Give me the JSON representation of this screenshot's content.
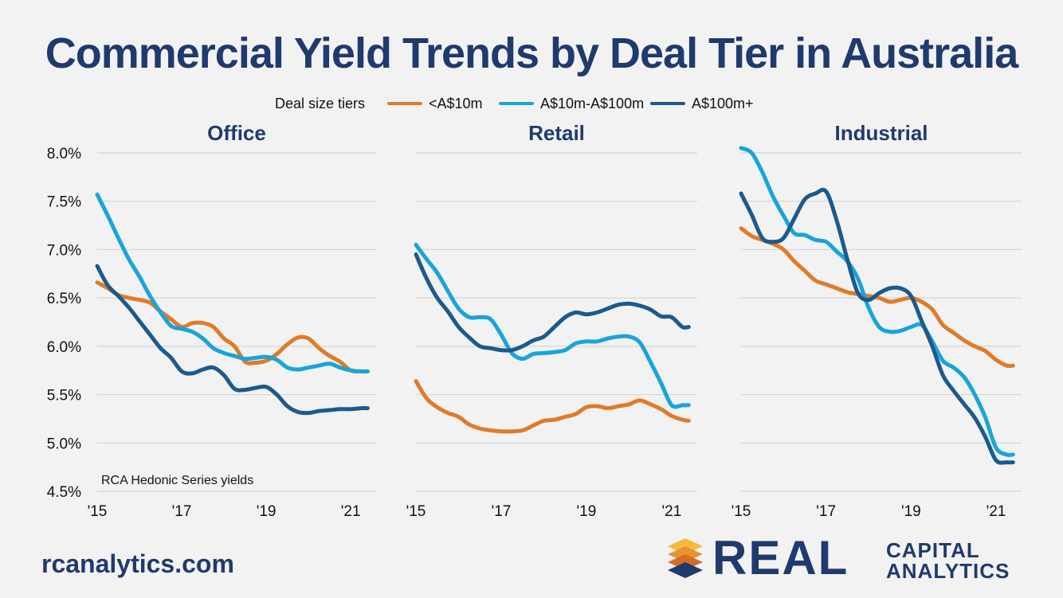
{
  "title": "Commercial Yield Trends by Deal Tier in Australia",
  "footer": {
    "site": "rcanalytics.com"
  },
  "logo": {
    "word": "REAL",
    "line1": "CAPITAL",
    "line2": "ANALYTICS"
  },
  "colors": {
    "background": "#f2f2f2",
    "title": "#1f3a6e",
    "grid": "#cfcfcf",
    "tier_small": "#e07b28",
    "tier_mid": "#18a4dc",
    "tier_large": "#1b5a8e"
  },
  "chart_data": {
    "type": "line",
    "legend_title": "Deal size tiers",
    "legend_position": "top-center",
    "note": "RCA Hedonic Series yields",
    "y_ticks": [
      "8.0%",
      "7.5%",
      "7.0%",
      "6.5%",
      "6.0%",
      "5.5%",
      "5.0%",
      "4.5%"
    ],
    "ylim": [
      4.5,
      8.0
    ],
    "x_ticks": [
      "'15",
      "'17",
      "'19",
      "'21"
    ],
    "x_tick_values": [
      2015,
      2017,
      2019,
      2021
    ],
    "xlim": [
      2015,
      2021.6
    ],
    "grid": "horizontal",
    "series_names": [
      "<A$10m",
      "A$10m-A$100m",
      "A$100m+"
    ],
    "panels": [
      {
        "title": "Office",
        "series": [
          {
            "name": "<A$10m",
            "x": [
              2015.0,
              2015.25,
              2015.5,
              2015.75,
              2016.0,
              2016.25,
              2016.5,
              2016.75,
              2017.0,
              2017.25,
              2017.5,
              2017.75,
              2018.0,
              2018.25,
              2018.5,
              2018.75,
              2019.0,
              2019.25,
              2019.5,
              2019.75,
              2020.0,
              2020.25,
              2020.5,
              2020.75,
              2021.0,
              2021.25,
              2021.4
            ],
            "y": [
              6.66,
              6.6,
              6.53,
              6.5,
              6.48,
              6.45,
              6.36,
              6.28,
              6.2,
              6.24,
              6.24,
              6.2,
              6.08,
              6.0,
              5.84,
              5.83,
              5.85,
              5.92,
              6.02,
              6.09,
              6.08,
              5.98,
              5.9,
              5.84,
              5.75,
              5.74,
              5.74
            ]
          },
          {
            "name": "A$10m-A$100m",
            "x": [
              2015.0,
              2015.25,
              2015.5,
              2015.75,
              2016.0,
              2016.25,
              2016.5,
              2016.75,
              2017.0,
              2017.25,
              2017.5,
              2017.75,
              2018.0,
              2018.25,
              2018.5,
              2018.75,
              2019.0,
              2019.25,
              2019.5,
              2019.75,
              2020.0,
              2020.25,
              2020.5,
              2020.75,
              2021.0,
              2021.25,
              2021.4
            ],
            "y": [
              7.57,
              7.35,
              7.12,
              6.9,
              6.72,
              6.52,
              6.35,
              6.21,
              6.18,
              6.15,
              6.08,
              5.98,
              5.93,
              5.9,
              5.87,
              5.88,
              5.89,
              5.86,
              5.78,
              5.76,
              5.78,
              5.8,
              5.82,
              5.78,
              5.75,
              5.74,
              5.74
            ]
          },
          {
            "name": "A$100m+",
            "x": [
              2015.0,
              2015.25,
              2015.5,
              2015.75,
              2016.0,
              2016.25,
              2016.5,
              2016.75,
              2017.0,
              2017.25,
              2017.5,
              2017.75,
              2018.0,
              2018.25,
              2018.5,
              2018.75,
              2019.0,
              2019.25,
              2019.5,
              2019.75,
              2020.0,
              2020.25,
              2020.5,
              2020.75,
              2021.0,
              2021.25,
              2021.4
            ],
            "y": [
              6.83,
              6.63,
              6.52,
              6.4,
              6.26,
              6.12,
              5.98,
              5.88,
              5.74,
              5.72,
              5.76,
              5.78,
              5.7,
              5.56,
              5.55,
              5.57,
              5.58,
              5.5,
              5.38,
              5.32,
              5.31,
              5.33,
              5.34,
              5.35,
              5.35,
              5.36,
              5.36
            ]
          }
        ]
      },
      {
        "title": "Retail",
        "series": [
          {
            "name": "<A$10m",
            "x": [
              2015.0,
              2015.25,
              2015.5,
              2015.75,
              2016.0,
              2016.25,
              2016.5,
              2016.75,
              2017.0,
              2017.25,
              2017.5,
              2017.75,
              2018.0,
              2018.25,
              2018.5,
              2018.75,
              2019.0,
              2019.25,
              2019.5,
              2019.75,
              2020.0,
              2020.25,
              2020.5,
              2020.75,
              2021.0,
              2021.25,
              2021.4
            ],
            "y": [
              5.64,
              5.46,
              5.37,
              5.31,
              5.27,
              5.19,
              5.15,
              5.13,
              5.12,
              5.12,
              5.13,
              5.18,
              5.23,
              5.24,
              5.27,
              5.3,
              5.37,
              5.38,
              5.36,
              5.38,
              5.4,
              5.44,
              5.4,
              5.35,
              5.28,
              5.24,
              5.23
            ]
          },
          {
            "name": "A$10m-A$100m",
            "x": [
              2015.0,
              2015.25,
              2015.5,
              2015.75,
              2016.0,
              2016.25,
              2016.5,
              2016.75,
              2017.0,
              2017.25,
              2017.5,
              2017.75,
              2018.0,
              2018.25,
              2018.5,
              2018.75,
              2019.0,
              2019.25,
              2019.5,
              2019.75,
              2020.0,
              2020.25,
              2020.5,
              2020.75,
              2021.0,
              2021.25,
              2021.4
            ],
            "y": [
              7.05,
              6.9,
              6.76,
              6.57,
              6.39,
              6.3,
              6.3,
              6.28,
              6.12,
              5.93,
              5.87,
              5.92,
              5.93,
              5.94,
              5.96,
              6.03,
              6.05,
              6.05,
              6.08,
              6.1,
              6.1,
              6.04,
              5.84,
              5.62,
              5.39,
              5.39,
              5.39
            ]
          },
          {
            "name": "A$100m+",
            "x": [
              2015.0,
              2015.25,
              2015.5,
              2015.75,
              2016.0,
              2016.25,
              2016.5,
              2016.75,
              2017.0,
              2017.25,
              2017.5,
              2017.75,
              2018.0,
              2018.25,
              2018.5,
              2018.75,
              2019.0,
              2019.25,
              2019.5,
              2019.75,
              2020.0,
              2020.25,
              2020.5,
              2020.75,
              2021.0,
              2021.25,
              2021.4
            ],
            "y": [
              6.95,
              6.7,
              6.5,
              6.36,
              6.2,
              6.09,
              6.0,
              5.98,
              5.96,
              5.96,
              6.0,
              6.06,
              6.1,
              6.2,
              6.3,
              6.35,
              6.33,
              6.35,
              6.39,
              6.43,
              6.44,
              6.42,
              6.38,
              6.31,
              6.3,
              6.2,
              6.2
            ]
          }
        ]
      },
      {
        "title": "Industrial",
        "series": [
          {
            "name": "<A$10m",
            "x": [
              2015.0,
              2015.25,
              2015.5,
              2015.75,
              2016.0,
              2016.25,
              2016.5,
              2016.75,
              2017.0,
              2017.25,
              2017.5,
              2017.75,
              2018.0,
              2018.25,
              2018.5,
              2018.75,
              2019.0,
              2019.25,
              2019.5,
              2019.75,
              2020.0,
              2020.25,
              2020.5,
              2020.75,
              2021.0,
              2021.25,
              2021.4
            ],
            "y": [
              7.22,
              7.14,
              7.1,
              7.06,
              7.0,
              6.88,
              6.78,
              6.68,
              6.64,
              6.6,
              6.56,
              6.54,
              6.52,
              6.5,
              6.46,
              6.48,
              6.5,
              6.46,
              6.38,
              6.22,
              6.14,
              6.06,
              6.0,
              5.95,
              5.86,
              5.8,
              5.8
            ]
          },
          {
            "name": "A$10m-A$100m",
            "x": [
              2015.0,
              2015.25,
              2015.5,
              2015.75,
              2016.0,
              2016.25,
              2016.5,
              2016.75,
              2017.0,
              2017.25,
              2017.5,
              2017.75,
              2018.0,
              2018.25,
              2018.5,
              2018.75,
              2019.0,
              2019.25,
              2019.5,
              2019.75,
              2020.0,
              2020.25,
              2020.5,
              2020.75,
              2021.0,
              2021.25,
              2021.4
            ],
            "y": [
              8.05,
              8.0,
              7.8,
              7.55,
              7.35,
              7.17,
              7.15,
              7.1,
              7.08,
              6.98,
              6.88,
              6.7,
              6.4,
              6.2,
              6.15,
              6.16,
              6.2,
              6.22,
              6.05,
              5.85,
              5.78,
              5.68,
              5.5,
              5.26,
              4.95,
              4.88,
              4.88
            ]
          },
          {
            "name": "A$100m+",
            "x": [
              2015.0,
              2015.25,
              2015.5,
              2015.75,
              2016.0,
              2016.25,
              2016.5,
              2016.75,
              2017.0,
              2017.25,
              2017.5,
              2017.75,
              2018.0,
              2018.25,
              2018.5,
              2018.75,
              2019.0,
              2019.25,
              2019.5,
              2019.75,
              2020.0,
              2020.25,
              2020.5,
              2020.75,
              2021.0,
              2021.25,
              2021.4
            ],
            "y": [
              7.58,
              7.36,
              7.12,
              7.08,
              7.12,
              7.32,
              7.52,
              7.58,
              7.6,
              7.3,
              6.9,
              6.55,
              6.48,
              6.55,
              6.6,
              6.6,
              6.52,
              6.26,
              6.0,
              5.7,
              5.54,
              5.4,
              5.26,
              5.06,
              4.82,
              4.8,
              4.8
            ]
          }
        ]
      }
    ]
  }
}
